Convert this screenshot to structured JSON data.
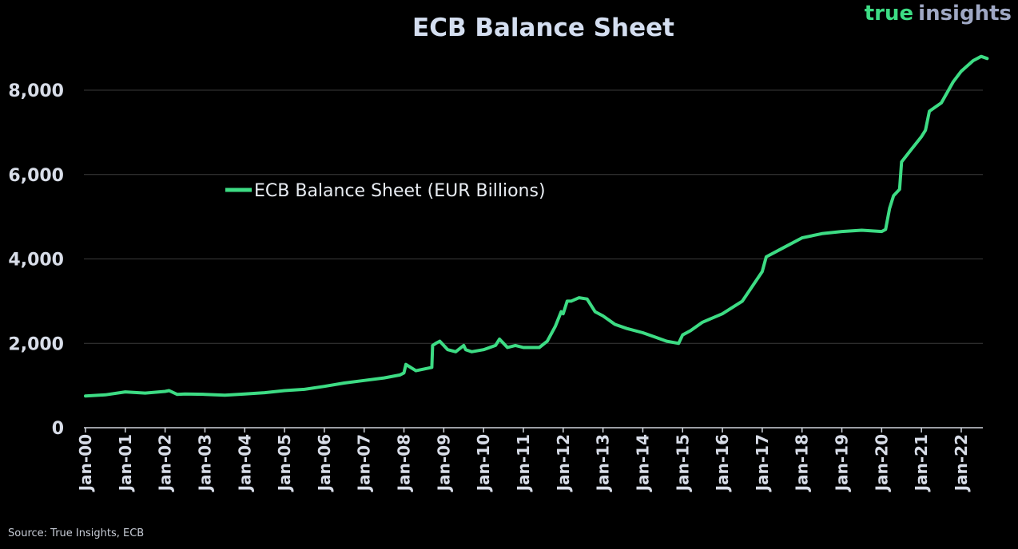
{
  "brand": {
    "part1": "true",
    "part2": "insights"
  },
  "source": "Source: True Insights, ECB",
  "chart_data": {
    "type": "line",
    "title": "ECB Balance Sheet",
    "xlabel": "",
    "ylabel": "",
    "ylim": [
      0,
      9000
    ],
    "xlim": [
      2000.0,
      2022.75
    ],
    "grid": true,
    "legend_position": "upper-left-middle",
    "y_ticks": [
      0,
      2000,
      4000,
      6000,
      8000
    ],
    "y_tick_labels": [
      "0",
      "2,000",
      "4,000",
      "6,000",
      "8,000"
    ],
    "x_ticks": [
      2000,
      2001,
      2002,
      2003,
      2004,
      2005,
      2006,
      2007,
      2008,
      2009,
      2010,
      2011,
      2012,
      2013,
      2014,
      2015,
      2016,
      2017,
      2018,
      2019,
      2020,
      2021,
      2022
    ],
    "x_tick_labels": [
      "Jan-00",
      "Jan-01",
      "Jan-02",
      "Jan-03",
      "Jan-04",
      "Jan-05",
      "Jan-06",
      "Jan-07",
      "Jan-08",
      "Jan-09",
      "Jan-10",
      "Jan-11",
      "Jan-12",
      "Jan-13",
      "Jan-14",
      "Jan-15",
      "Jan-16",
      "Jan-17",
      "Jan-18",
      "Jan-19",
      "Jan-20",
      "Jan-21",
      "Jan-22"
    ],
    "colors": {
      "line": "#3ddc84",
      "grid": "#3a3a3a",
      "axis": "#cfd4dc"
    },
    "series": [
      {
        "name": "ECB Balance Sheet (EUR Billions)",
        "x": [
          2000.0,
          2000.5,
          2001.0,
          2001.5,
          2002.0,
          2002.1,
          2002.3,
          2002.5,
          2003.0,
          2003.5,
          2004.0,
          2004.5,
          2005.0,
          2005.5,
          2006.0,
          2006.5,
          2007.0,
          2007.5,
          2007.9,
          2008.0,
          2008.05,
          2008.3,
          2008.7,
          2008.72,
          2008.8,
          2008.9,
          2009.1,
          2009.3,
          2009.5,
          2009.55,
          2009.7,
          2010.0,
          2010.3,
          2010.4,
          2010.6,
          2010.8,
          2011.0,
          2011.4,
          2011.6,
          2011.8,
          2011.95,
          2012.0,
          2012.1,
          2012.2,
          2012.4,
          2012.6,
          2012.8,
          2013.0,
          2013.3,
          2013.6,
          2014.0,
          2014.3,
          2014.6,
          2014.9,
          2015.0,
          2015.2,
          2015.5,
          2016.0,
          2016.5,
          2017.0,
          2017.1,
          2017.5,
          2018.0,
          2018.5,
          2019.0,
          2019.5,
          2020.0,
          2020.1,
          2020.2,
          2020.3,
          2020.45,
          2020.5,
          2020.75,
          2021.0,
          2021.1,
          2021.2,
          2021.5,
          2021.8,
          2022.0,
          2022.3,
          2022.5,
          2022.65
        ],
        "values": [
          750,
          780,
          850,
          820,
          860,
          880,
          790,
          800,
          790,
          770,
          800,
          830,
          880,
          910,
          980,
          1060,
          1120,
          1180,
          1250,
          1300,
          1500,
          1350,
          1430,
          1950,
          2000,
          2050,
          1850,
          1800,
          1950,
          1850,
          1800,
          1850,
          1950,
          2100,
          1900,
          1950,
          1900,
          1900,
          2050,
          2400,
          2750,
          2700,
          3000,
          3000,
          3080,
          3050,
          2750,
          2650,
          2450,
          2350,
          2250,
          2150,
          2050,
          2000,
          2200,
          2300,
          2500,
          2700,
          3000,
          3700,
          4050,
          4250,
          4500,
          4600,
          4650,
          4680,
          4650,
          4700,
          5200,
          5500,
          5650,
          6300,
          6600,
          6900,
          7050,
          7500,
          7700,
          8200,
          8450,
          8700,
          8800,
          8750
        ]
      }
    ]
  }
}
